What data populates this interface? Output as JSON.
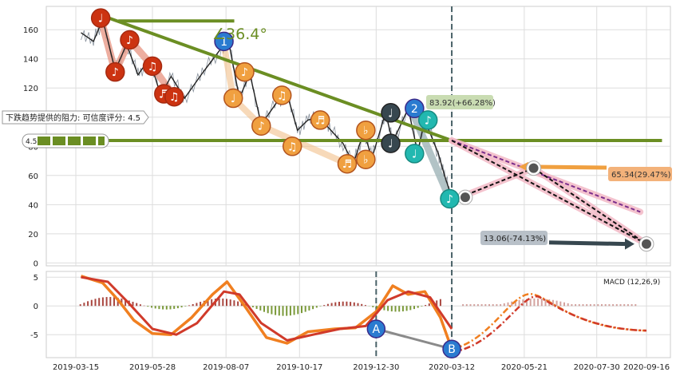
{
  "colors": {
    "price": "#3a4a5c",
    "trend_line": "#6b8e23",
    "support_line": "#6b8e23",
    "up_marker": "#f0a040",
    "down_marker": "#cc3311",
    "wave_marker": "#2a7bd0",
    "teal_marker": "#22b8b0",
    "dark_marker": "#37474f",
    "macd_fast": "#f07f20",
    "macd_slow": "#d03a2a",
    "hist_pos": "#a0322a",
    "hist_neg": "#6b8e23",
    "projection_band": "#f2b8c6"
  },
  "chart_data": [
    {
      "type": "line",
      "name": "price-panel",
      "x_ticks": [
        "2019-03-15",
        "2019-05-28",
        "2019-08-07",
        "2019-10-17",
        "2019-12-30",
        "2020-03-12",
        "2020-05-21",
        "2020-07-30",
        "2020-09-16"
      ],
      "y_ticks": [
        0,
        20,
        40,
        60,
        80,
        100,
        120,
        140,
        160
      ],
      "ylim": [
        -2,
        176
      ],
      "series": [
        {
          "values": [
            {
              "date": "2019-03-20",
              "v": 158
            },
            {
              "date": "2019-04-01",
              "v": 152
            },
            {
              "date": "2019-04-10",
              "v": 167
            },
            {
              "date": "2019-04-22",
              "v": 132
            },
            {
              "date": "2019-05-03",
              "v": 150
            },
            {
              "date": "2019-05-14",
              "v": 129
            },
            {
              "date": "2019-05-25",
              "v": 140
            },
            {
              "date": "2019-06-05",
              "v": 115
            },
            {
              "date": "2019-06-15",
              "v": 128
            },
            {
              "date": "2019-06-28",
              "v": 113
            },
            {
              "date": "2019-07-15",
              "v": 130
            },
            {
              "date": "2019-08-01",
              "v": 146
            },
            {
              "date": "2019-08-10",
              "v": 150
            },
            {
              "date": "2019-08-20",
              "v": 113
            },
            {
              "date": "2019-08-30",
              "v": 130
            },
            {
              "date": "2019-09-10",
              "v": 95
            },
            {
              "date": "2019-09-25",
              "v": 110
            },
            {
              "date": "2019-10-05",
              "v": 116
            },
            {
              "date": "2019-10-15",
              "v": 91
            },
            {
              "date": "2019-10-25",
              "v": 98
            },
            {
              "date": "2019-11-05",
              "v": 100
            },
            {
              "date": "2019-11-15",
              "v": 92
            },
            {
              "date": "2019-11-28",
              "v": 82
            },
            {
              "date": "2019-12-08",
              "v": 68
            },
            {
              "date": "2019-12-18",
              "v": 90
            },
            {
              "date": "2019-12-26",
              "v": 72
            },
            {
              "date": "2020-01-08",
              "v": 103
            },
            {
              "date": "2020-01-15",
              "v": 83
            },
            {
              "date": "2020-01-30",
              "v": 106
            },
            {
              "date": "2020-02-08",
              "v": 76
            },
            {
              "date": "2020-02-15",
              "v": 98
            },
            {
              "date": "2020-02-28",
              "v": 75
            },
            {
              "date": "2020-03-05",
              "v": 60
            },
            {
              "date": "2020-03-12",
              "v": 45
            }
          ]
        }
      ],
      "markers": [
        {
          "date": "2019-04-08",
          "v": 168,
          "kind": "down",
          "glyph": "♩"
        },
        {
          "date": "2019-04-22",
          "v": 131,
          "kind": "down",
          "glyph": "♪"
        },
        {
          "date": "2019-05-06",
          "v": 153,
          "kind": "down",
          "glyph": "♪"
        },
        {
          "date": "2019-05-28",
          "v": 135,
          "kind": "down",
          "glyph": "♫"
        },
        {
          "date": "2019-06-08",
          "v": 116,
          "kind": "down",
          "glyph": "♬"
        },
        {
          "date": "2019-06-18",
          "v": 114,
          "kind": "down",
          "glyph": "♫"
        },
        {
          "date": "2019-08-05",
          "v": 152,
          "kind": "wave",
          "glyph": "1"
        },
        {
          "date": "2019-08-14",
          "v": 113,
          "kind": "up",
          "glyph": "♩"
        },
        {
          "date": "2019-08-25",
          "v": 131,
          "kind": "up",
          "glyph": "♪"
        },
        {
          "date": "2019-09-10",
          "v": 94,
          "kind": "up",
          "glyph": "♪"
        },
        {
          "date": "2019-09-30",
          "v": 115,
          "kind": "up",
          "glyph": "♫"
        },
        {
          "date": "2019-10-10",
          "v": 80,
          "kind": "up",
          "glyph": "♫"
        },
        {
          "date": "2019-11-06",
          "v": 98,
          "kind": "up",
          "glyph": "♬"
        },
        {
          "date": "2019-12-02",
          "v": 68,
          "kind": "up",
          "glyph": "♬"
        },
        {
          "date": "2019-12-20",
          "v": 91,
          "kind": "up",
          "glyph": "♭"
        },
        {
          "date": "2019-12-20",
          "v": 71,
          "kind": "up",
          "glyph": "♭"
        },
        {
          "date": "2020-01-13",
          "v": 103,
          "kind": "dark",
          "glyph": "♩"
        },
        {
          "date": "2020-01-13",
          "v": 82,
          "kind": "dark",
          "glyph": "♩"
        },
        {
          "date": "2020-02-05",
          "v": 106,
          "kind": "wave",
          "glyph": "2"
        },
        {
          "date": "2020-02-05",
          "v": 75,
          "kind": "teal",
          "glyph": "♩"
        },
        {
          "date": "2020-02-18",
          "v": 98,
          "kind": "teal",
          "glyph": "♪"
        },
        {
          "date": "2020-03-10",
          "v": 44,
          "kind": "teal",
          "glyph": "♪"
        }
      ],
      "annotations": {
        "angle": "∠36.4°",
        "resistance": "下跌趋势提供的阻力: 可信度评分: 4.5",
        "score_value": "4.5",
        "upside": "83.92(+66.28%)",
        "mid_target": "65.34(29.47%)",
        "downside": "13.06(-74.13%)"
      },
      "trend_lines": [
        {
          "from": {
            "date": "2019-04-08",
            "v": 170
          },
          "to": {
            "date": "2020-03-12",
            "v": 84
          }
        },
        {
          "from": {
            "date": "2019-04-25",
            "v": 166
          },
          "to": {
            "date": "2019-08-15",
            "v": 166
          }
        },
        {
          "from": {
            "date": "2019-03-01",
            "v": 84
          },
          "to": {
            "date": "2020-10-01",
            "v": 84
          }
        }
      ],
      "projections": [
        {
          "from": {
            "date": "2020-03-12",
            "v": 84
          },
          "to": {
            "date": "2020-09-10",
            "v": 35
          },
          "style": "dashed-purple"
        },
        {
          "from": {
            "date": "2020-03-12",
            "v": 84
          },
          "to": {
            "date": "2020-09-16",
            "v": 13
          },
          "style": "dashed-black"
        },
        {
          "from": {
            "date": "2020-03-20",
            "v": 45
          },
          "to": {
            "date": "2020-05-30",
            "v": 65
          },
          "style": "dashed-black"
        },
        {
          "from": {
            "date": "2020-05-30",
            "v": 65
          },
          "to": {
            "date": "2020-09-16",
            "v": 13
          },
          "style": "dashed-black"
        }
      ]
    },
    {
      "type": "line",
      "name": "macd-panel",
      "title": "MACD (12,26,9)",
      "y_ticks": [
        5,
        0,
        -5
      ],
      "ylim": [
        -9,
        6
      ],
      "series": [
        {
          "values": [
            {
              "date": "2019-03-20",
              "v": 5.2
            },
            {
              "date": "2019-04-10",
              "v": 4.0
            },
            {
              "date": "2019-04-25",
              "v": 1.0
            },
            {
              "date": "2019-05-10",
              "v": -2.5
            },
            {
              "date": "2019-05-28",
              "v": -4.8
            },
            {
              "date": "2019-06-15",
              "v": -5.0
            },
            {
              "date": "2019-07-05",
              "v": -2.0
            },
            {
              "date": "2019-07-25",
              "v": 2.0
            },
            {
              "date": "2019-08-08",
              "v": 4.2
            },
            {
              "date": "2019-08-25",
              "v": 0.0
            },
            {
              "date": "2019-09-15",
              "v": -5.5
            },
            {
              "date": "2019-10-05",
              "v": -6.5
            },
            {
              "date": "2019-10-25",
              "v": -4.5
            },
            {
              "date": "2019-11-20",
              "v": -4.0
            },
            {
              "date": "2019-12-10",
              "v": -3.8
            },
            {
              "date": "2019-12-30",
              "v": -1.0
            },
            {
              "date": "2020-01-15",
              "v": 3.5
            },
            {
              "date": "2020-01-30",
              "v": 2.0
            },
            {
              "date": "2020-02-15",
              "v": 2.5
            },
            {
              "date": "2020-03-01",
              "v": -2.0
            },
            {
              "date": "2020-03-12",
              "v": -7.5
            }
          ]
        },
        {
          "values": [
            {
              "date": "2019-03-20",
              "v": 5.0
            },
            {
              "date": "2019-04-15",
              "v": 4.2
            },
            {
              "date": "2019-05-05",
              "v": 0.5
            },
            {
              "date": "2019-05-28",
              "v": -4.0
            },
            {
              "date": "2019-06-20",
              "v": -5.0
            },
            {
              "date": "2019-07-10",
              "v": -3.0
            },
            {
              "date": "2019-08-05",
              "v": 2.5
            },
            {
              "date": "2019-08-20",
              "v": 2.0
            },
            {
              "date": "2019-09-10",
              "v": -3.0
            },
            {
              "date": "2019-10-05",
              "v": -6.0
            },
            {
              "date": "2019-10-30",
              "v": -5.0
            },
            {
              "date": "2019-11-25",
              "v": -4.0
            },
            {
              "date": "2019-12-20",
              "v": -3.5
            },
            {
              "date": "2020-01-10",
              "v": 1.0
            },
            {
              "date": "2020-01-30",
              "v": 2.5
            },
            {
              "date": "2020-02-20",
              "v": 1.5
            },
            {
              "date": "2020-03-12",
              "v": -4.0
            }
          ]
        }
      ],
      "points": [
        {
          "label": "A",
          "date": "2019-12-30",
          "v": -4.0
        },
        {
          "label": "B",
          "date": "2020-03-12",
          "v": -7.5
        }
      ]
    }
  ]
}
